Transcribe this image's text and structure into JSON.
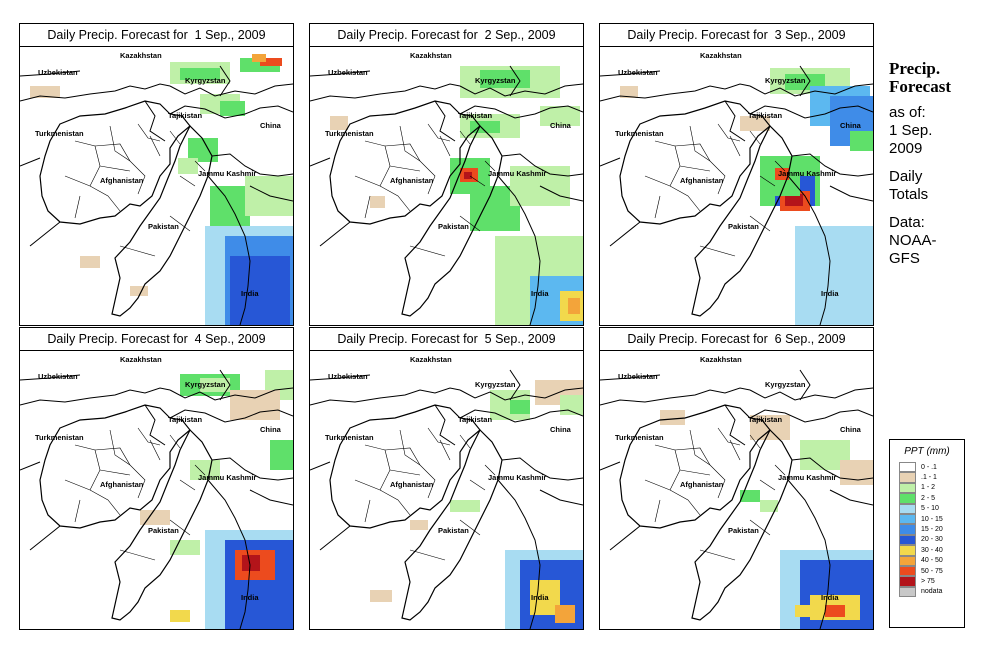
{
  "panels": [
    {
      "title": "Daily Precip. Forecast for  1 Sep., 2009",
      "day": 1
    },
    {
      "title": "Daily Precip. Forecast for  2 Sep., 2009",
      "day": 2
    },
    {
      "title": "Daily Precip. Forecast for  3 Sep., 2009",
      "day": 3
    },
    {
      "title": "Daily Precip. Forecast for  4 Sep., 2009",
      "day": 4
    },
    {
      "title": "Daily Precip. Forecast for  5 Sep., 2009",
      "day": 5
    },
    {
      "title": "Daily Precip. Forecast for  6 Sep., 2009",
      "day": 6
    }
  ],
  "map_labels": {
    "kazakhstan": "Kazakhstan",
    "uzbekistan": "Uzbekistan",
    "kyrgyzstan": "Kyrgyzstan",
    "tajikistan": "Tajikistan",
    "turkmenistan": "Turkmenistan",
    "china": "China",
    "afghanistan": "Afghanistan",
    "jammu_kashmir": "Jammu Kashmir",
    "pakistan": "Pakistan",
    "india": "India"
  },
  "side": {
    "heading1": "Precip.",
    "heading2": "Forecast",
    "asof1": "as of:",
    "asof2": "1 Sep.",
    "asof3": "2009",
    "totals1": "Daily",
    "totals2": "Totals",
    "data1": "Data:",
    "data2": "NOAA-",
    "data3": "GFS"
  },
  "legend": {
    "title": "PPT (mm)",
    "classes": [
      {
        "label": "0 - .1",
        "color": "#ffffff"
      },
      {
        "label": ".1 - 1",
        "color": "#e8d2b4"
      },
      {
        "label": "1 - 2",
        "color": "#bff0a8"
      },
      {
        "label": "2 - 5",
        "color": "#5fe06a"
      },
      {
        "label": "5 - 10",
        "color": "#a8dcf2"
      },
      {
        "label": "10 - 15",
        "color": "#5cb8f0"
      },
      {
        "label": "15 - 20",
        "color": "#3f8ce8"
      },
      {
        "label": "20 - 30",
        "color": "#2757d6"
      },
      {
        "label": "30 - 40",
        "color": "#f2d94c"
      },
      {
        "label": "40 - 50",
        "color": "#f3a43a"
      },
      {
        "label": "50 - 75",
        "color": "#ec4b1e"
      },
      {
        "label": "> 75",
        "color": "#b3141a"
      },
      {
        "label": "nodata",
        "color": "#c8c8c8"
      }
    ]
  }
}
